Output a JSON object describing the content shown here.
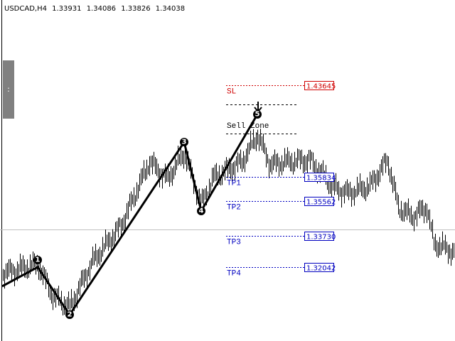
{
  "header": {
    "symbol": "USDCAD,H4",
    "open": "1.33931",
    "high": "1.34086",
    "low": "1.33826",
    "close": "1.34038"
  },
  "levels": [
    {
      "label": "SL",
      "price": "1.43645"
    },
    {
      "label": "TP1",
      "price": "1.35834"
    },
    {
      "label": "TP2",
      "price": "1.35562"
    },
    {
      "label": "TP3",
      "price": "1.33730"
    },
    {
      "label": "TP4",
      "price": "1.32042"
    }
  ],
  "zone": "Sell Zone",
  "side_handle": ":",
  "waves": [
    "1",
    "2",
    "3",
    "4",
    "5"
  ]
}
